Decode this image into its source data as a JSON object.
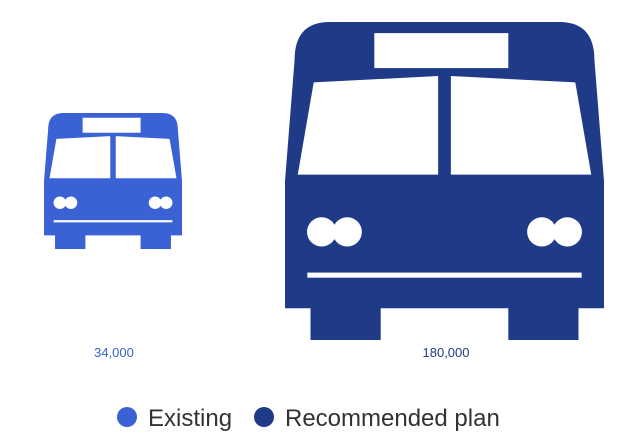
{
  "chart_data": {
    "type": "bar",
    "mark": "bus-pictogram",
    "encoding": "pictogram area proportional to value",
    "categories": [
      "Existing",
      "Recommended plan"
    ],
    "values": [
      34000,
      180000
    ],
    "value_labels": [
      "34,000",
      "180,000"
    ],
    "colors": [
      "#3a62d4",
      "#1f3b87"
    ],
    "title": "",
    "legend": {
      "placement": "bottom-center",
      "entries": [
        "Existing",
        "Recommended plan"
      ]
    }
  }
}
